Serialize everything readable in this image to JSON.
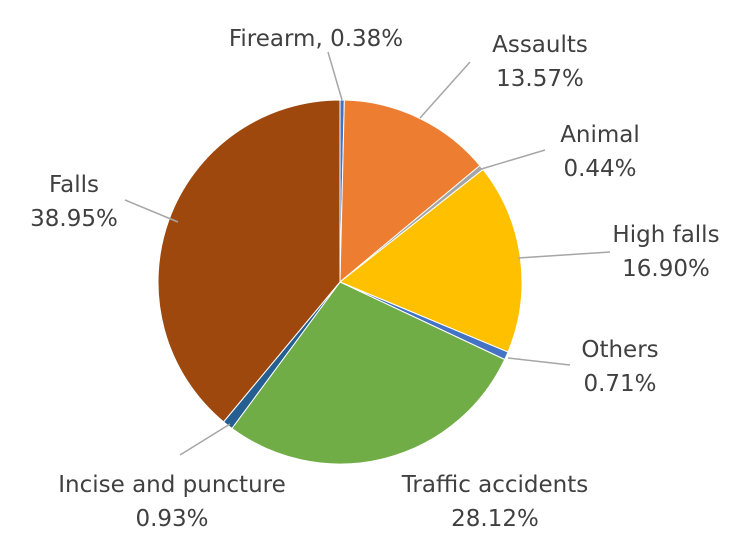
{
  "chart_data": {
    "type": "pie",
    "title": "",
    "start_angle_deg": 0,
    "direction": "clockwise",
    "slices": [
      {
        "name": "Firearm",
        "value": 0.38,
        "value_label": "0.38%",
        "color": "#4472C4",
        "label_style": "inline"
      },
      {
        "name": "Assaults",
        "value": 13.57,
        "value_label": "13.57%",
        "color": "#ED7D31",
        "label_style": "stacked"
      },
      {
        "name": "Animal",
        "value": 0.44,
        "value_label": "0.44%",
        "color": "#A5A5A5",
        "label_style": "stacked"
      },
      {
        "name": "High falls",
        "value": 16.9,
        "value_label": "16.90%",
        "color": "#FFC000",
        "label_style": "stacked"
      },
      {
        "name": "Others",
        "value": 0.71,
        "value_label": "0.71%",
        "color": "#4472C4",
        "label_style": "stacked"
      },
      {
        "name": "Traffic accidents",
        "value": 28.12,
        "value_label": "28.12%",
        "color": "#70AD47",
        "label_style": "stacked"
      },
      {
        "name": "Incise and puncture",
        "value": 0.93,
        "value_label": "0.93%",
        "color": "#255E91",
        "label_style": "stacked"
      },
      {
        "name": "Falls",
        "value": 38.95,
        "value_label": "38.95%",
        "color": "#9E480E",
        "label_style": "stacked"
      }
    ],
    "label_color": "#404040",
    "leader_line_color": "#A6A6A6"
  }
}
